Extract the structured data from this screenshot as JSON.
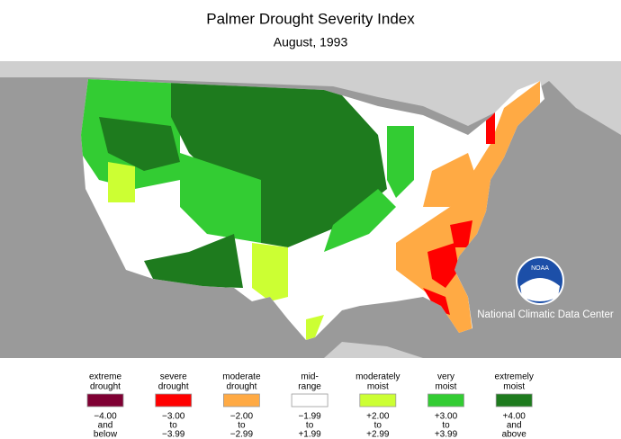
{
  "header": {
    "title": "Palmer Drought Severity Index",
    "subtitle": "August, 1993"
  },
  "org": "National Climatic Data Center",
  "logo_text": "NOAA",
  "legend": [
    {
      "label": [
        "extreme",
        "drought"
      ],
      "range": [
        "−4.00",
        "and",
        "below"
      ],
      "color": "#7f0033"
    },
    {
      "label": [
        "severe",
        "drought"
      ],
      "range": [
        "−3.00",
        "to",
        "−3.99"
      ],
      "color": "#ff0000"
    },
    {
      "label": [
        "moderate",
        "drought"
      ],
      "range": [
        "−2.00",
        "to",
        "−2.99"
      ],
      "color": "#ffaa44"
    },
    {
      "label": [
        "mid-",
        "range"
      ],
      "range": [
        "−1.99",
        "to",
        "+1.99"
      ],
      "color": "#ffffff"
    },
    {
      "label": [
        "moderately",
        "moist"
      ],
      "range": [
        "+2.00",
        "to",
        "+2.99"
      ],
      "color": "#ccff33"
    },
    {
      "label": [
        "very",
        "moist"
      ],
      "range": [
        "+3.00",
        "to",
        "+3.99"
      ],
      "color": "#33cc33"
    },
    {
      "label": [
        "extremely",
        "moist"
      ],
      "range": [
        "+4.00",
        "and",
        "above"
      ],
      "color": "#1e7b1e"
    }
  ]
}
